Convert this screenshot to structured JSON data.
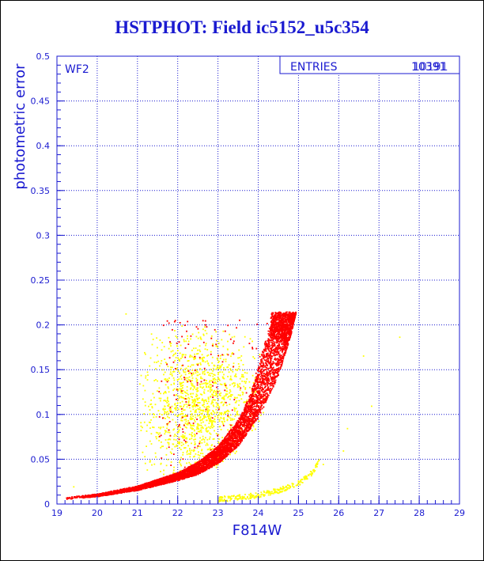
{
  "title": "HSTPHOT: Field ic5152_u5c354",
  "panel_label": "WF2",
  "stats_box": {
    "label": "ENTRIES",
    "value": "10391",
    "overlap_value": "10191"
  },
  "colors": {
    "text": "#1a1ad0",
    "grid": "#1a1ad0",
    "series_red": "#ff0000",
    "series_yellow": "#ffff00"
  },
  "chart_data": {
    "type": "scatter",
    "title": "HSTPHOT: Field ic5152_u5c354",
    "xlabel": "F814W",
    "ylabel": "photometric error",
    "xlim": [
      19,
      29
    ],
    "ylim": [
      0,
      0.5
    ],
    "x_ticks": [
      "19",
      "20",
      "21",
      "22",
      "23",
      "24",
      "25",
      "26",
      "27",
      "28",
      "29"
    ],
    "y_ticks": [
      "0",
      "0.05",
      "0.1",
      "0.15",
      "0.2",
      "0.25",
      "0.3",
      "0.35",
      "0.4",
      "0.45",
      "0.5"
    ],
    "grid": true,
    "entries": 10391,
    "series": [
      {
        "color": "#ff0000",
        "envelope": {
          "lower_edge": [
            [
              19.2,
              0.006
            ],
            [
              20.0,
              0.009
            ],
            [
              21.0,
              0.016
            ],
            [
              22.0,
              0.027
            ],
            [
              22.5,
              0.034
            ],
            [
              23.0,
              0.046
            ],
            [
              23.5,
              0.066
            ],
            [
              24.0,
              0.098
            ],
            [
              24.5,
              0.145
            ],
            [
              24.8,
              0.19
            ],
            [
              24.92,
              0.214
            ]
          ],
          "upper_edge": [
            [
              19.2,
              0.008
            ],
            [
              20.0,
              0.012
            ],
            [
              21.0,
              0.021
            ],
            [
              22.0,
              0.036
            ],
            [
              22.5,
              0.048
            ],
            [
              23.0,
              0.066
            ],
            [
              23.5,
              0.096
            ],
            [
              23.8,
              0.125
            ],
            [
              24.0,
              0.155
            ],
            [
              24.2,
              0.19
            ],
            [
              24.4,
              0.214
            ]
          ],
          "max_error": 0.215
        }
      },
      {
        "color": "#ffff00",
        "clouds": [
          {
            "x_range": [
              21.0,
              24.5
            ],
            "y_range": [
              0.03,
              0.215
            ],
            "center": [
              22.6,
              0.11
            ]
          }
        ],
        "tail": [
          [
            23.0,
            0.006
          ],
          [
            23.5,
            0.008
          ],
          [
            24.0,
            0.011
          ],
          [
            24.5,
            0.016
          ],
          [
            25.0,
            0.024
          ],
          [
            25.3,
            0.035
          ],
          [
            25.5,
            0.048
          ]
        ],
        "outliers": [
          [
            20.7,
            0.213
          ],
          [
            21.6,
            0.181
          ],
          [
            26.6,
            0.166
          ],
          [
            27.5,
            0.187
          ],
          [
            26.2,
            0.085
          ],
          [
            26.1,
            0.06
          ],
          [
            26.8,
            0.11
          ],
          [
            25.6,
            0.045
          ],
          [
            19.4,
            0.02
          ]
        ]
      }
    ]
  }
}
